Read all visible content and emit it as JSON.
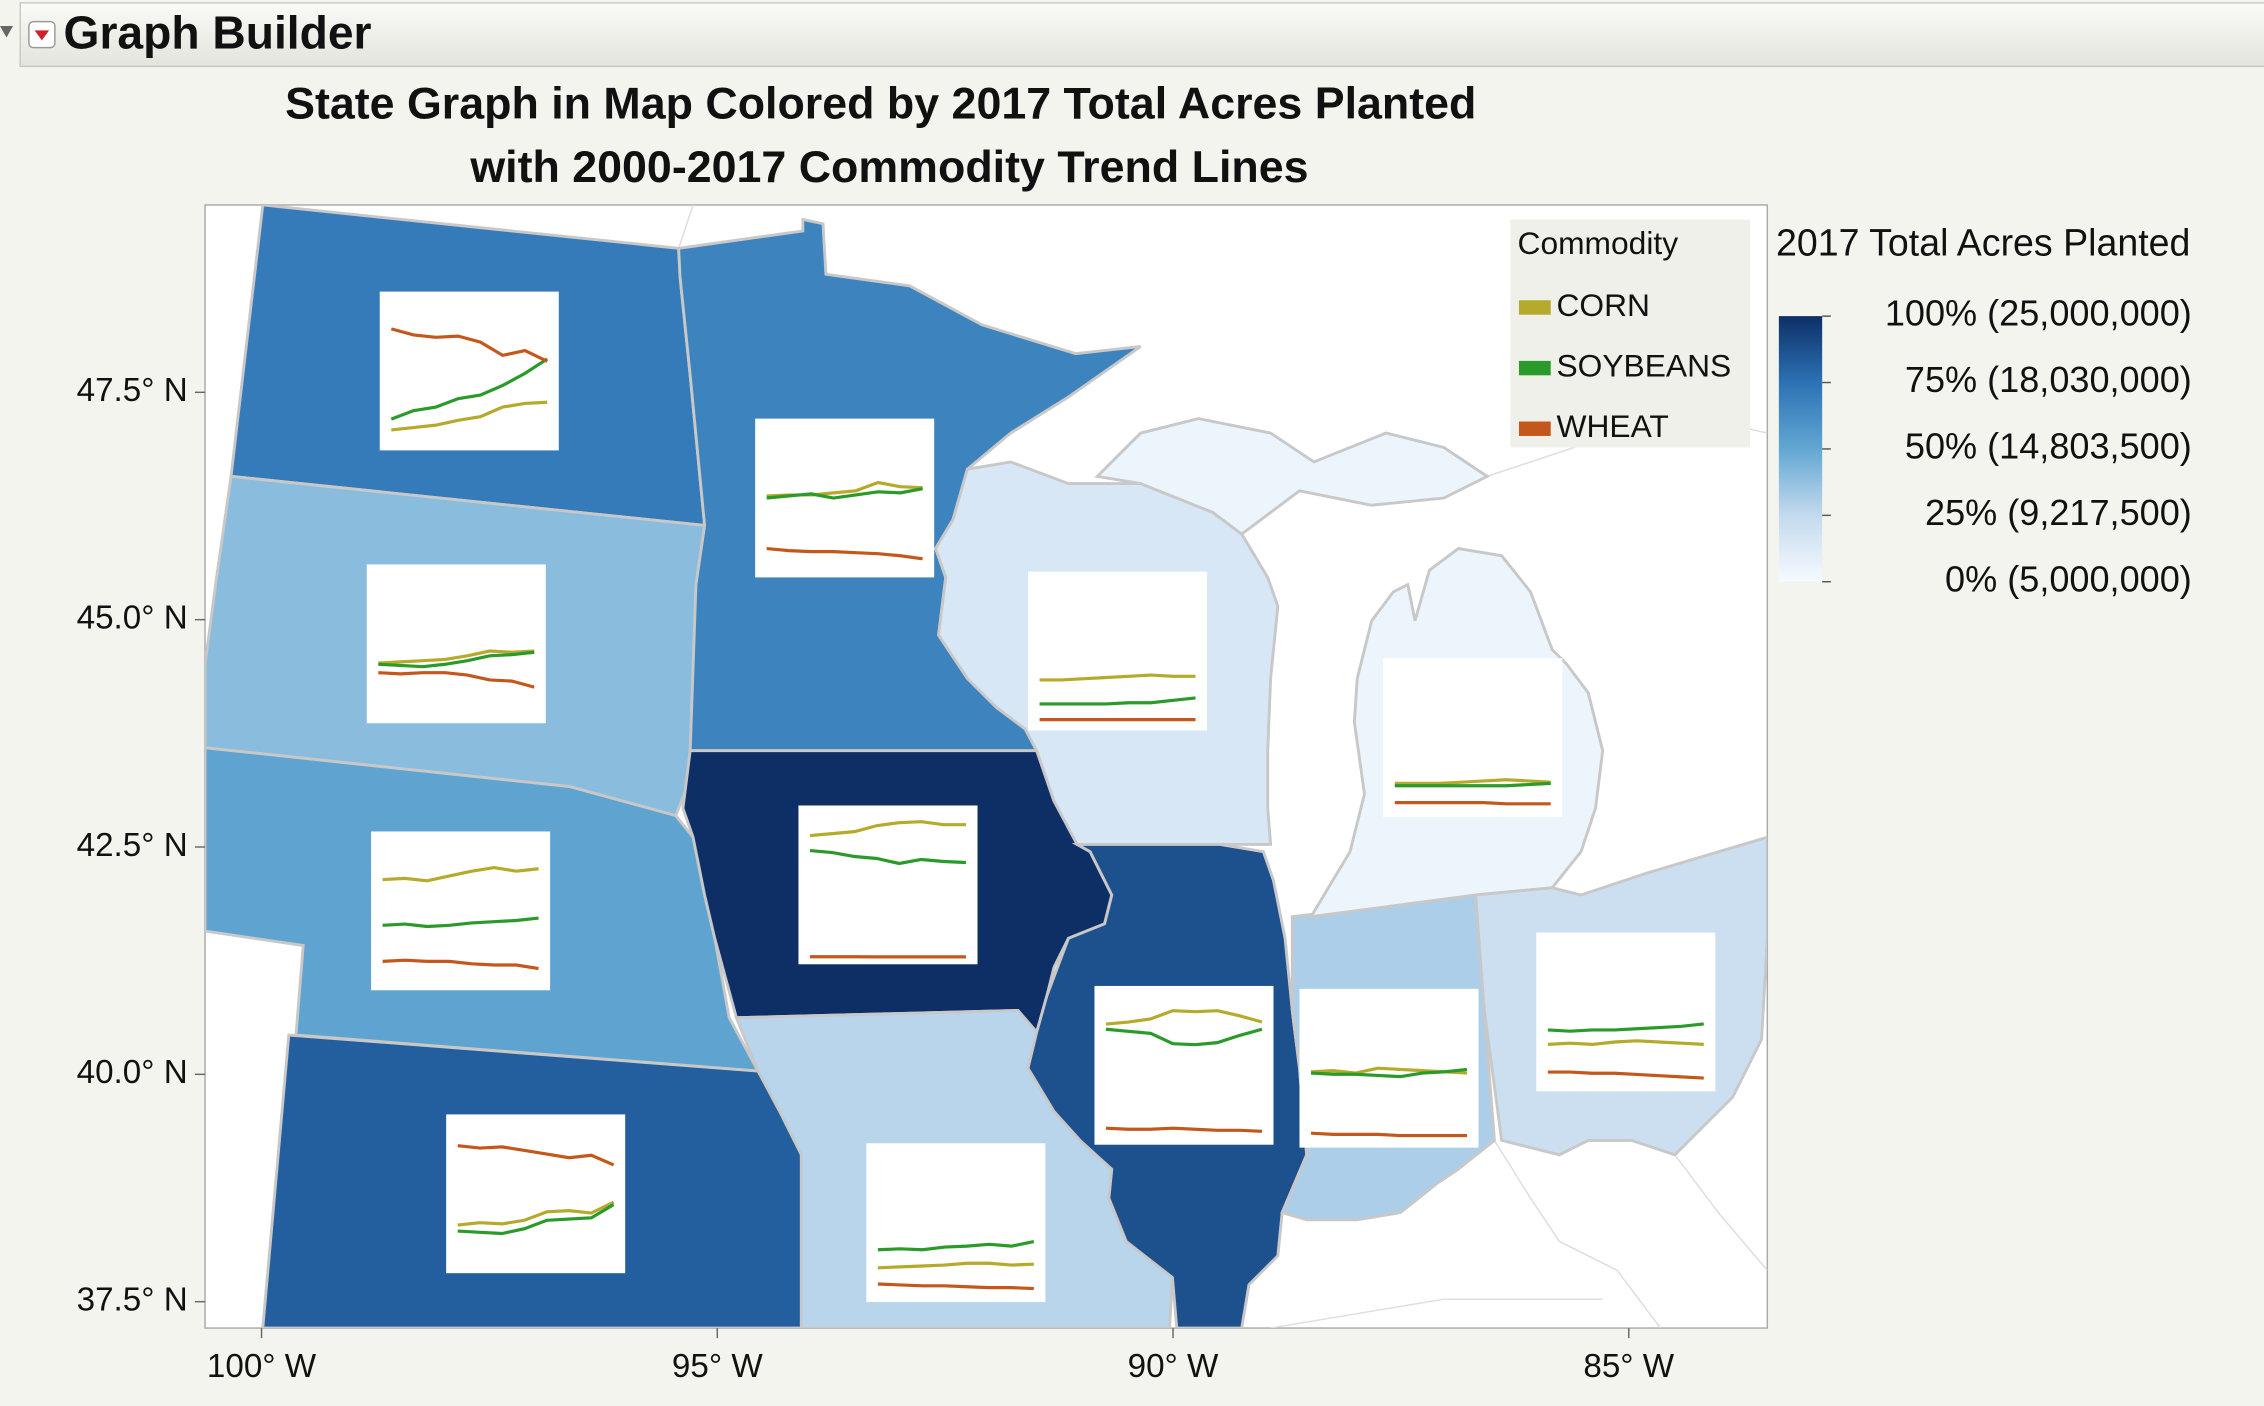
{
  "header": {
    "title": "Graph Builder"
  },
  "chart_data": {
    "type": "map",
    "title": [
      "State Graph in Map Colored by 2017 Total Acres Planted",
      "with 2000-2017 Commodity Trend Lines"
    ],
    "xlim": [
      -100.62,
      -83.48
    ],
    "ylim": [
      37.21,
      49.56
    ],
    "xticks": [
      {
        "value": -100,
        "label": "100° W"
      },
      {
        "value": -95,
        "label": "95° W"
      },
      {
        "value": -90,
        "label": "90° W"
      },
      {
        "value": -85,
        "label": "85° W"
      }
    ],
    "yticks": [
      {
        "value": 37.5,
        "label": "37.5° N"
      },
      {
        "value": 40.0,
        "label": "40.0° N"
      },
      {
        "value": 42.5,
        "label": "42.5° N"
      },
      {
        "value": 45.0,
        "label": "45.0° N"
      },
      {
        "value": 47.5,
        "label": "47.5° N"
      }
    ],
    "legend_title": "Commodity",
    "series": [
      {
        "name": "CORN",
        "color": "#b5aa2b"
      },
      {
        "name": "SOYBEANS",
        "color": "#2a9a2a"
      },
      {
        "name": "WHEAT",
        "color": "#c4581c"
      }
    ],
    "color_scale": {
      "title": "2017 Total Acres Planted",
      "ticks": [
        {
          "value": 25000000,
          "label": "100% (25,000,000)"
        },
        {
          "value": 18030000,
          "label": "75% (18,030,000)"
        },
        {
          "value": 14803500,
          "label": "50% (14,803,500)"
        },
        {
          "value": 9217500,
          "label": "25% (9,217,500)"
        },
        {
          "value": 5000000,
          "label": "0% (5,000,000)"
        }
      ],
      "colors": [
        "#0d2f66",
        "#2c72b4",
        "#62a7d3",
        "#c3daee",
        "#f6faff"
      ]
    },
    "states": [
      {
        "total_acres": 17500000,
        "ylim": [
          0,
          12
        ],
        "values": [
          [
            1.1,
            1.3,
            1.5,
            1.9,
            2.2,
            3.0,
            3.3,
            3.4
          ],
          [
            2.0,
            2.7,
            3.0,
            3.7,
            4.0,
            4.8,
            5.8,
            7.0
          ],
          [
            9.5,
            9.0,
            8.8,
            8.9,
            8.4,
            7.3,
            7.7,
            6.8
          ]
        ]
      },
      {
        "total_acres": 12500000,
        "ylim": [
          0,
          12
        ],
        "values": [
          [
            4.4,
            4.5,
            4.6,
            4.7,
            5.0,
            5.4,
            5.3,
            5.4
          ],
          [
            4.3,
            4.2,
            4.1,
            4.3,
            4.6,
            5.0,
            5.1,
            5.3
          ],
          [
            3.6,
            3.5,
            3.6,
            3.6,
            3.4,
            3.0,
            2.9,
            2.4
          ]
        ]
      },
      {
        "total_acres": 15000000,
        "ylim": [
          0,
          12
        ],
        "values": [
          [
            8.6,
            8.7,
            8.5,
            8.9,
            9.3,
            9.6,
            9.3,
            9.5
          ],
          [
            4.8,
            4.9,
            4.7,
            4.8,
            5.0,
            5.1,
            5.2,
            5.4
          ],
          [
            1.8,
            1.9,
            1.8,
            1.8,
            1.6,
            1.5,
            1.5,
            1.2
          ]
        ]
      },
      {
        "total_acres": 20000000,
        "ylim": [
          0,
          12
        ],
        "values": [
          [
            3.4,
            3.6,
            3.5,
            3.8,
            4.5,
            4.6,
            4.4,
            5.3
          ],
          [
            2.9,
            2.8,
            2.7,
            3.1,
            3.8,
            3.9,
            4.0,
            5.1
          ],
          [
            10.0,
            9.8,
            9.9,
            9.6,
            9.3,
            9.0,
            9.2,
            8.4
          ]
        ]
      },
      {
        "total_acres": 17000000,
        "ylim": [
          0,
          14
        ],
        "values": [
          [
            7.2,
            7.3,
            7.3,
            7.5,
            7.7,
            8.5,
            8.1,
            8.0
          ],
          [
            7.0,
            7.2,
            7.4,
            7.0,
            7.3,
            7.6,
            7.5,
            7.9
          ],
          [
            2.1,
            1.9,
            1.8,
            1.8,
            1.7,
            1.6,
            1.4,
            1.1
          ]
        ]
      },
      {
        "total_acres": 25000000,
        "ylim": [
          0,
          14.5
        ],
        "values": [
          [
            12.2,
            12.4,
            12.6,
            13.2,
            13.5,
            13.6,
            13.3,
            13.3
          ],
          [
            10.7,
            10.5,
            10.1,
            9.9,
            9.4,
            9.8,
            9.6,
            9.5
          ],
          [
            0.03,
            0.03,
            0.03,
            0.02,
            0.02,
            0.02,
            0.02,
            0.02
          ]
        ]
      },
      {
        "total_acres": 9800000,
        "ylim": [
          0,
          16
        ],
        "values": [
          [
            3.0,
            3.1,
            3.2,
            3.3,
            3.5,
            3.5,
            3.3,
            3.4
          ],
          [
            5.0,
            5.1,
            5.0,
            5.3,
            5.4,
            5.6,
            5.4,
            5.9
          ],
          [
            1.2,
            1.1,
            1.0,
            1.0,
            0.9,
            0.8,
            0.8,
            0.7
          ]
        ]
      },
      {
        "total_acres": 7500000,
        "ylim": [
          0,
          12
        ],
        "values": [
          [
            3.6,
            3.6,
            3.7,
            3.8,
            3.9,
            4.0,
            3.9,
            3.9
          ],
          [
            1.6,
            1.6,
            1.6,
            1.6,
            1.7,
            1.7,
            1.9,
            2.1
          ],
          [
            0.3,
            0.3,
            0.3,
            0.3,
            0.3,
            0.3,
            0.3,
            0.3
          ]
        ]
      },
      {
        "total_acres": 21500000,
        "ylim": [
          0,
          14
        ],
        "values": [
          [
            11.0,
            11.2,
            11.5,
            12.3,
            12.2,
            12.3,
            11.8,
            11.2
          ],
          [
            10.5,
            10.3,
            10.1,
            9.1,
            9.0,
            9.2,
            9.9,
            10.5
          ],
          [
            0.9,
            0.8,
            0.8,
            0.9,
            0.8,
            0.7,
            0.7,
            0.6
          ]
        ]
      },
      {
        "total_acres": 10500000,
        "ylim": [
          0,
          12
        ],
        "values": [
          [
            5.7,
            5.8,
            5.6,
            6.0,
            5.9,
            5.8,
            5.7,
            5.6
          ],
          [
            5.6,
            5.5,
            5.5,
            5.4,
            5.3,
            5.6,
            5.7,
            5.9
          ],
          [
            0.6,
            0.5,
            0.5,
            0.5,
            0.4,
            0.4,
            0.4,
            0.4
          ]
        ]
      },
      {
        "total_acres": 5800000,
        "ylim": [
          0,
          12
        ],
        "values": [
          [
            2.2,
            2.2,
            2.2,
            2.3,
            2.4,
            2.5,
            2.4,
            2.3
          ],
          [
            2.0,
            2.0,
            2.0,
            2.0,
            2.0,
            2.0,
            2.1,
            2.2
          ],
          [
            0.6,
            0.6,
            0.6,
            0.6,
            0.6,
            0.5,
            0.5,
            0.5
          ]
        ]
      },
      {
        "total_acres": 8500000,
        "ylim": [
          0,
          12
        ],
        "values": [
          [
            3.3,
            3.4,
            3.3,
            3.5,
            3.6,
            3.5,
            3.4,
            3.3
          ],
          [
            4.5,
            4.4,
            4.5,
            4.5,
            4.6,
            4.7,
            4.8,
            5.0
          ],
          [
            1.0,
            1.0,
            0.9,
            0.9,
            0.8,
            0.7,
            0.6,
            0.5
          ]
        ]
      }
    ]
  }
}
